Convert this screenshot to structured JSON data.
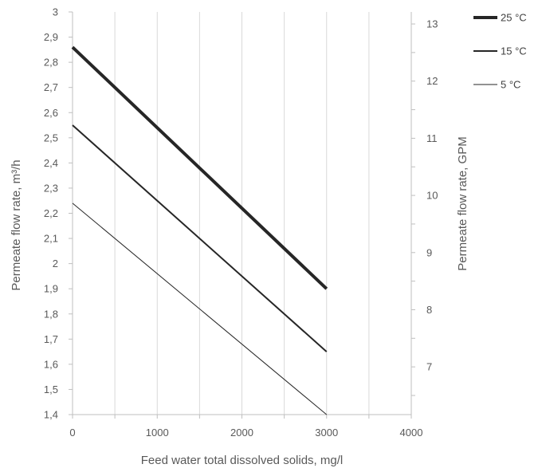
{
  "chart_data": {
    "type": "line",
    "xlabel": "Feed water total dissolved solids, mg/l",
    "ylabel": "Permeate flow rate, m³/h",
    "y2label": "Permeate flow rate, GPM",
    "xlim": [
      0,
      4000
    ],
    "ylim": [
      1.4,
      3.0
    ],
    "y2lim": [
      6.165,
      13.21
    ],
    "xticks": [
      0,
      1000,
      2000,
      3000,
      4000
    ],
    "xtick_labels": [
      "0",
      "1000",
      "2000",
      "3000",
      "4000"
    ],
    "yticks": [
      1.4,
      1.5,
      1.6,
      1.7,
      1.8,
      1.9,
      2.0,
      2.1,
      2.2,
      2.3,
      2.4,
      2.5,
      2.6,
      2.7,
      2.8,
      2.9,
      3.0
    ],
    "ytick_labels": [
      "1,4",
      "1,5",
      "1,6",
      "1,7",
      "1,8",
      "1,9",
      "2",
      "2,1",
      "2,2",
      "2,3",
      "2,4",
      "2,5",
      "2,6",
      "2,7",
      "2,8",
      "2,9",
      "3"
    ],
    "y2ticks": [
      7,
      8,
      9,
      10,
      11,
      12,
      13
    ],
    "y2tick_labels": [
      "7",
      "8",
      "9",
      "10",
      "11",
      "12",
      "13"
    ],
    "grid": {
      "vertical": true,
      "horizontal": false
    },
    "legend_position": "top-right",
    "series": [
      {
        "name": "25 °C",
        "color": "#262626",
        "x": [
          0,
          3000
        ],
        "y": [
          2.86,
          1.9
        ]
      },
      {
        "name": "15 °C",
        "color": "#262626",
        "x": [
          0,
          3000
        ],
        "y": [
          2.55,
          1.65
        ]
      },
      {
        "name": "5 °C",
        "color": "#262626",
        "x": [
          0,
          3000
        ],
        "y": [
          2.24,
          1.4
        ]
      }
    ]
  }
}
